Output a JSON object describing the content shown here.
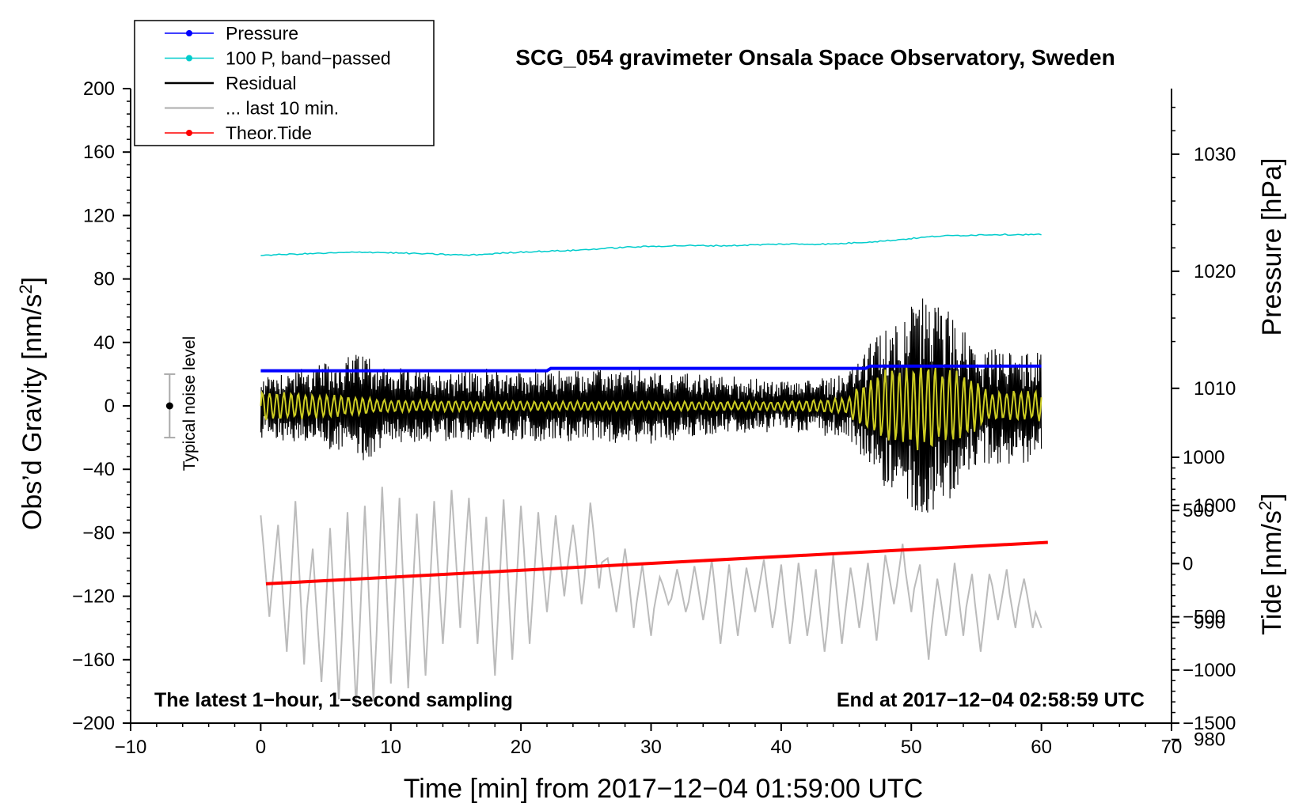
{
  "chart_data": {
    "type": "line",
    "title": "SCG_054 gravimeter Onsala Space Observatory, Sweden",
    "xlabel": "Time [min] from 2017−12−04 01:59:00 UTC",
    "ylabel_main": "Obs’d Gravity [nm/s²]",
    "ylabel_main_base": "Obs’d Gravity [nm/s",
    "ylabel_main_sup": "2",
    "ylabel_main_end": "]",
    "ylabel_pressure": "Pressure [hPa]",
    "ylabel_tide": "Tide [nm/s²]",
    "ylabel_tide_base": "Tide [nm/s",
    "ylabel_tide_sup": "2",
    "ylabel_tide_end": "]",
    "note_left": "The latest 1−hour, 1−second sampling",
    "note_right": "End at 2017−12−04 02:58:59 UTC",
    "noise_label": "Typical noise level",
    "noise_bar": {
      "x": -7,
      "center": 0,
      "low": -20,
      "high": 20
    },
    "xlim": [
      -10,
      70
    ],
    "ylim": [
      -200,
      200
    ],
    "pressure_lim": [
      981.4,
      1035.6
    ],
    "tide_lim": [
      -1500,
      1000
    ],
    "x_ticks": [
      -10,
      0,
      10,
      20,
      30,
      40,
      50,
      60,
      70
    ],
    "x_tick_labels": [
      "−10",
      "0",
      "10",
      "20",
      "30",
      "40",
      "50",
      "60",
      "70"
    ],
    "y_ticks": [
      -200,
      -160,
      -120,
      -80,
      -40,
      0,
      40,
      80,
      120,
      160,
      200
    ],
    "y_tick_labels": [
      "−200",
      "−160",
      "−120",
      "−80",
      "−40",
      "0",
      "40",
      "80",
      "120",
      "160",
      "200"
    ],
    "pressure_ticks": [
      980,
      990,
      1000,
      1010,
      1020,
      1030
    ],
    "pressure_tick_labels": [
      "980",
      "990",
      "1000",
      "1010",
      "1020",
      "1030"
    ],
    "tide_ticks": [
      -1500,
      -1000,
      -500,
      0,
      500,
      1000
    ],
    "tide_tick_labels": [
      "−1500",
      "−1000",
      "−500",
      "0",
      "500",
      "1000"
    ],
    "legend": [
      {
        "label": "Pressure",
        "color": "#0000ff",
        "marker": true
      },
      {
        "label": "100 P, band−passed",
        "color": "#00cccc",
        "marker": true
      },
      {
        "label": "Residual",
        "color": "#000000",
        "marker": false
      },
      {
        "label": "... last 10 min.",
        "color": "#bbbbbb",
        "marker": false
      },
      {
        "label": "Theor.Tide",
        "color": "#ff0000",
        "marker": true
      }
    ],
    "legend_position": "top-left",
    "series": [
      {
        "name": "Pressure",
        "axis": "pressure",
        "color": "#0000ff",
        "x": [
          0,
          10,
          20,
          22,
          22.3,
          30,
          40,
          46.5,
          46.8,
          55,
          60
        ],
        "y": [
          1011.5,
          1011.5,
          1011.5,
          1011.5,
          1011.7,
          1011.7,
          1011.7,
          1011.7,
          1011.9,
          1011.9,
          1011.9
        ]
      },
      {
        "name": "100 P, band−passed",
        "axis": "main",
        "color": "#00cccc",
        "x": [
          0,
          4,
          8,
          12,
          16,
          20,
          24,
          28,
          32,
          36,
          40,
          44,
          48,
          52,
          56,
          60
        ],
        "y": [
          95,
          96,
          97,
          96,
          95,
          97,
          98,
          100,
          101,
          101,
          102,
          102,
          104,
          107,
          108,
          108
        ]
      },
      {
        "name": "Residual",
        "axis": "main",
        "color": "#000000",
        "kind": "noise",
        "amplitude_nm_s2": 18,
        "envelope": {
          "x": [
            0,
            5,
            8,
            10,
            20,
            30,
            40,
            45,
            48,
            51,
            53,
            55,
            58,
            60
          ],
          "amp": [
            20,
            26,
            35,
            22,
            22,
            22,
            15,
            20,
            50,
            70,
            60,
            35,
            35,
            35
          ]
        }
      },
      {
        "name": "Residual (filtered)",
        "axis": "main",
        "color": "#cccc22",
        "kind": "oscillation",
        "envelope": {
          "x": [
            0,
            5,
            10,
            20,
            40,
            45,
            47,
            51,
            54,
            56,
            60
          ],
          "amp": [
            10,
            8,
            4,
            3,
            3,
            5,
            22,
            30,
            22,
            10,
            10
          ]
        }
      },
      {
        "name": "... last 10 min.",
        "axis": "main",
        "color": "#bbbbbb",
        "kind": "oscillation",
        "peaks": [
          -69,
          -75,
          -60,
          -90,
          -77,
          -67,
          -63,
          -51,
          -58,
          -68,
          -60,
          -53,
          -58,
          -70,
          -59,
          -63,
          -67,
          -69,
          -75,
          -61,
          -96,
          -90,
          -100,
          -108,
          -103,
          -101,
          -97,
          -100,
          -102,
          -97,
          -100,
          -99,
          -103,
          -94,
          -102,
          -99,
          -94,
          -87,
          -100,
          -109,
          -99,
          -106,
          -106,
          -103,
          -109
        ],
        "troughs": [
          -133,
          -155,
          -163,
          -174,
          -185,
          -190,
          -186,
          -175,
          -178,
          -170,
          -150,
          -140,
          -150,
          -170,
          -160,
          -150,
          -130,
          -120,
          -125,
          -115,
          -130,
          -140,
          -145,
          -125,
          -130,
          -135,
          -150,
          -145,
          -130,
          -140,
          -150,
          -145,
          -155,
          -150,
          -140,
          -148,
          -125,
          -130,
          -160,
          -145,
          -145,
          -155,
          -135,
          -140,
          -140
        ]
      },
      {
        "name": "Theor.Tide",
        "axis": "tide",
        "color": "#ff0000",
        "x": [
          0.4,
          60.5
        ],
        "y": [
          -190,
          200
        ]
      }
    ]
  }
}
